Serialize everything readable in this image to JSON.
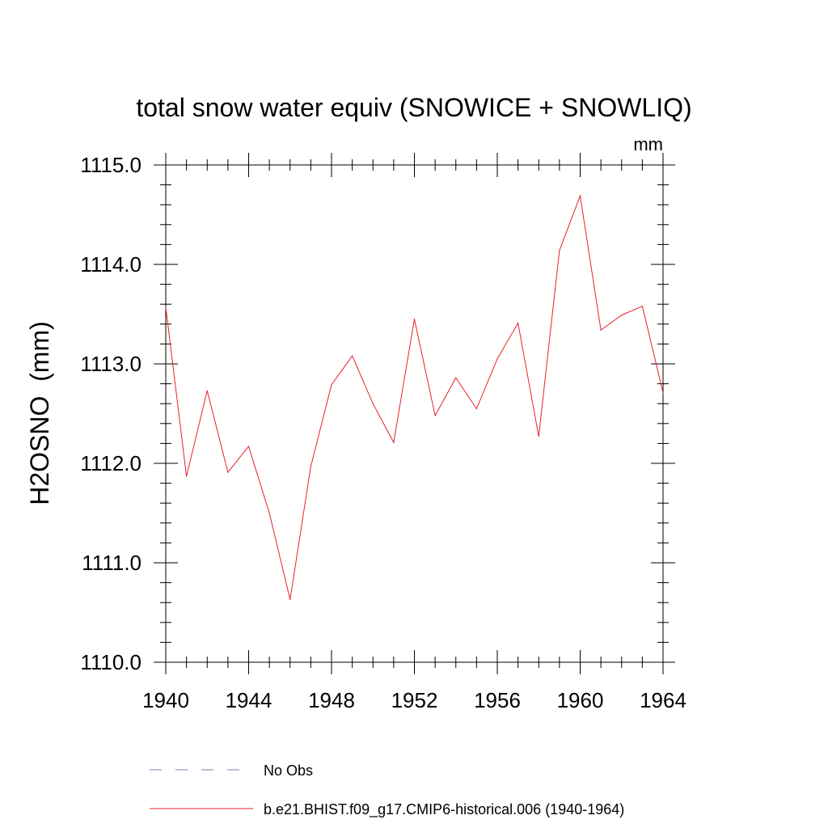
{
  "chart_data": {
    "type": "line",
    "title": "total snow water equiv (SNOWICE + SNOWLIQ)",
    "units": "mm",
    "ylabel": "H2OSNO  (mm)",
    "xlabel": "",
    "xlim": [
      1940,
      1964
    ],
    "ylim": [
      1110.0,
      1115.0
    ],
    "x_ticks": [
      1940,
      1944,
      1948,
      1952,
      1956,
      1960,
      1964
    ],
    "y_ticks": [
      "1110.0",
      "1111.0",
      "1112.0",
      "1113.0",
      "1114.0",
      "1115.0"
    ],
    "x_minor_step": 1,
    "y_minor_step": 0.2,
    "grid": false,
    "legend_position": "bottom",
    "series": [
      {
        "name": "No Obs",
        "color": "#7b7bb8",
        "dash": "dashed",
        "x": [],
        "values": []
      },
      {
        "name": "b.e21.BHIST.f09_g17.CMIP6-historical.006 (1940-1964)",
        "color": "#e8202a",
        "dash": "solid",
        "x": [
          1940,
          1941,
          1942,
          1943,
          1944,
          1945,
          1946,
          1947,
          1948,
          1949,
          1950,
          1951,
          1952,
          1953,
          1954,
          1955,
          1956,
          1957,
          1958,
          1959,
          1960,
          1961,
          1962,
          1963,
          1964
        ],
        "values": [
          1113.57,
          1111.87,
          1112.73,
          1111.91,
          1112.17,
          1111.5,
          1110.63,
          1111.97,
          1112.79,
          1113.08,
          1112.6,
          1112.21,
          1113.45,
          1112.48,
          1112.86,
          1112.55,
          1113.05,
          1113.41,
          1112.27,
          1114.14,
          1114.69,
          1113.34,
          1113.49,
          1113.58,
          1112.71
        ]
      }
    ]
  }
}
